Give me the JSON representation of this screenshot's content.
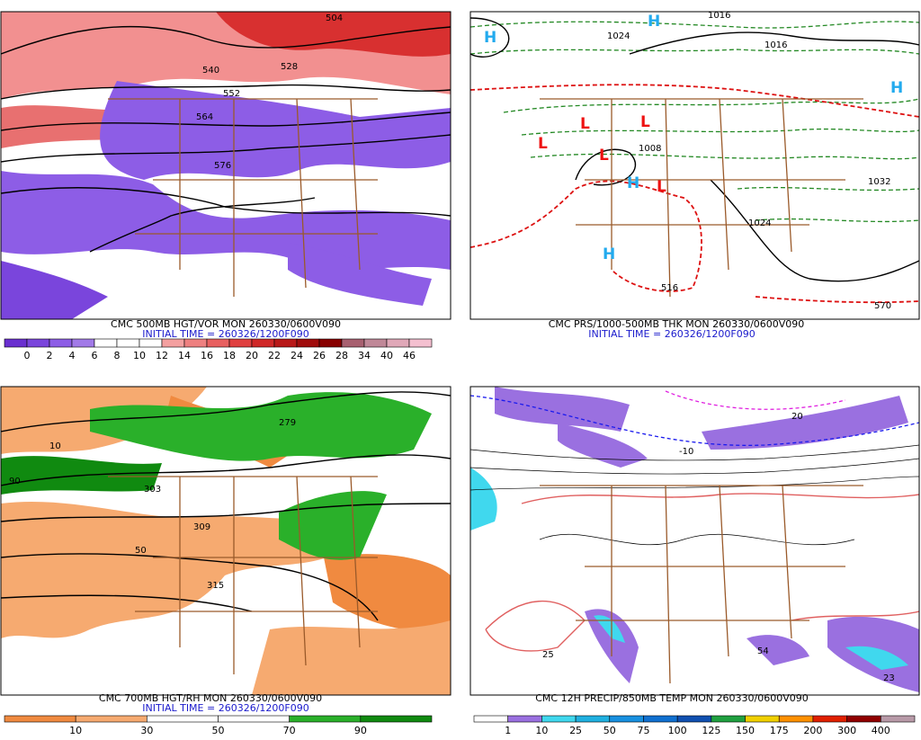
{
  "panels": [
    {
      "caption": "CMC 500MB HGT/VOR MON 260330/0600V090",
      "initial_time": "INITIAL TIME = 260326/1200F090",
      "colorbar": {
        "colors": [
          "#6a2fd0",
          "#7a45dc",
          "#8d5de6",
          "#a27ae8",
          "#ffffff",
          "#ffffff",
          "#ffffff",
          "#f4a0a0",
          "#ee8080",
          "#e86060",
          "#e04040",
          "#d02828",
          "#b81818",
          "#a00c0c",
          "#880000",
          "#a86070",
          "#c08898",
          "#e0a8b8",
          "#f4c0d0"
        ],
        "labels": [
          "0",
          "2",
          "4",
          "6",
          "8",
          "10",
          "12",
          "14",
          "16",
          "18",
          "20",
          "22",
          "24",
          "26",
          "28",
          "34",
          "40",
          "46"
        ]
      },
      "map_labels": [
        "540",
        "564",
        "576",
        "504",
        "528",
        "552"
      ]
    },
    {
      "caption": "CMC PRS/1000-500MB THK MON 260330/0600V090",
      "initial_time": "INITIAL TIME = 260326/1200F090",
      "map_labels": [
        "1016",
        "1024",
        "1008",
        "1032",
        "1024",
        "1016",
        "570",
        "516",
        "H",
        "L"
      ]
    },
    {
      "caption": "CMC 700MB HGT/RH MON 260330/0600V090",
      "initial_time": "INITIAL TIME = 260326/1200F090",
      "colorbar": {
        "colors": [
          "#f08a40",
          "#f6aa70",
          "#ffffff",
          "#ffffff",
          "#2ab02a",
          "#108a10"
        ],
        "labels": [
          "10",
          "30",
          "50",
          "70",
          "90"
        ]
      },
      "map_labels": [
        "279",
        "303",
        "309",
        "315",
        "50",
        "10",
        "90"
      ]
    },
    {
      "caption": "CMC 12H PRECIP/850MB TEMP MON 260330/0600V090",
      "colorbar": {
        "colors": [
          "#ffffff",
          "#9a70e0",
          "#40d8ee",
          "#20b0e0",
          "#1890e0",
          "#1070d0",
          "#1050b0",
          "#20a040",
          "#f0d000",
          "#ff9000",
          "#e02000",
          "#900000",
          "#b89aa8"
        ],
        "labels": [
          "1",
          "10",
          "25",
          "50",
          "75",
          "100",
          "125",
          "150",
          "175",
          "200",
          "300",
          "400"
        ]
      },
      "map_labels": [
        "-10",
        "20",
        "25",
        "54",
        "23"
      ]
    }
  ]
}
